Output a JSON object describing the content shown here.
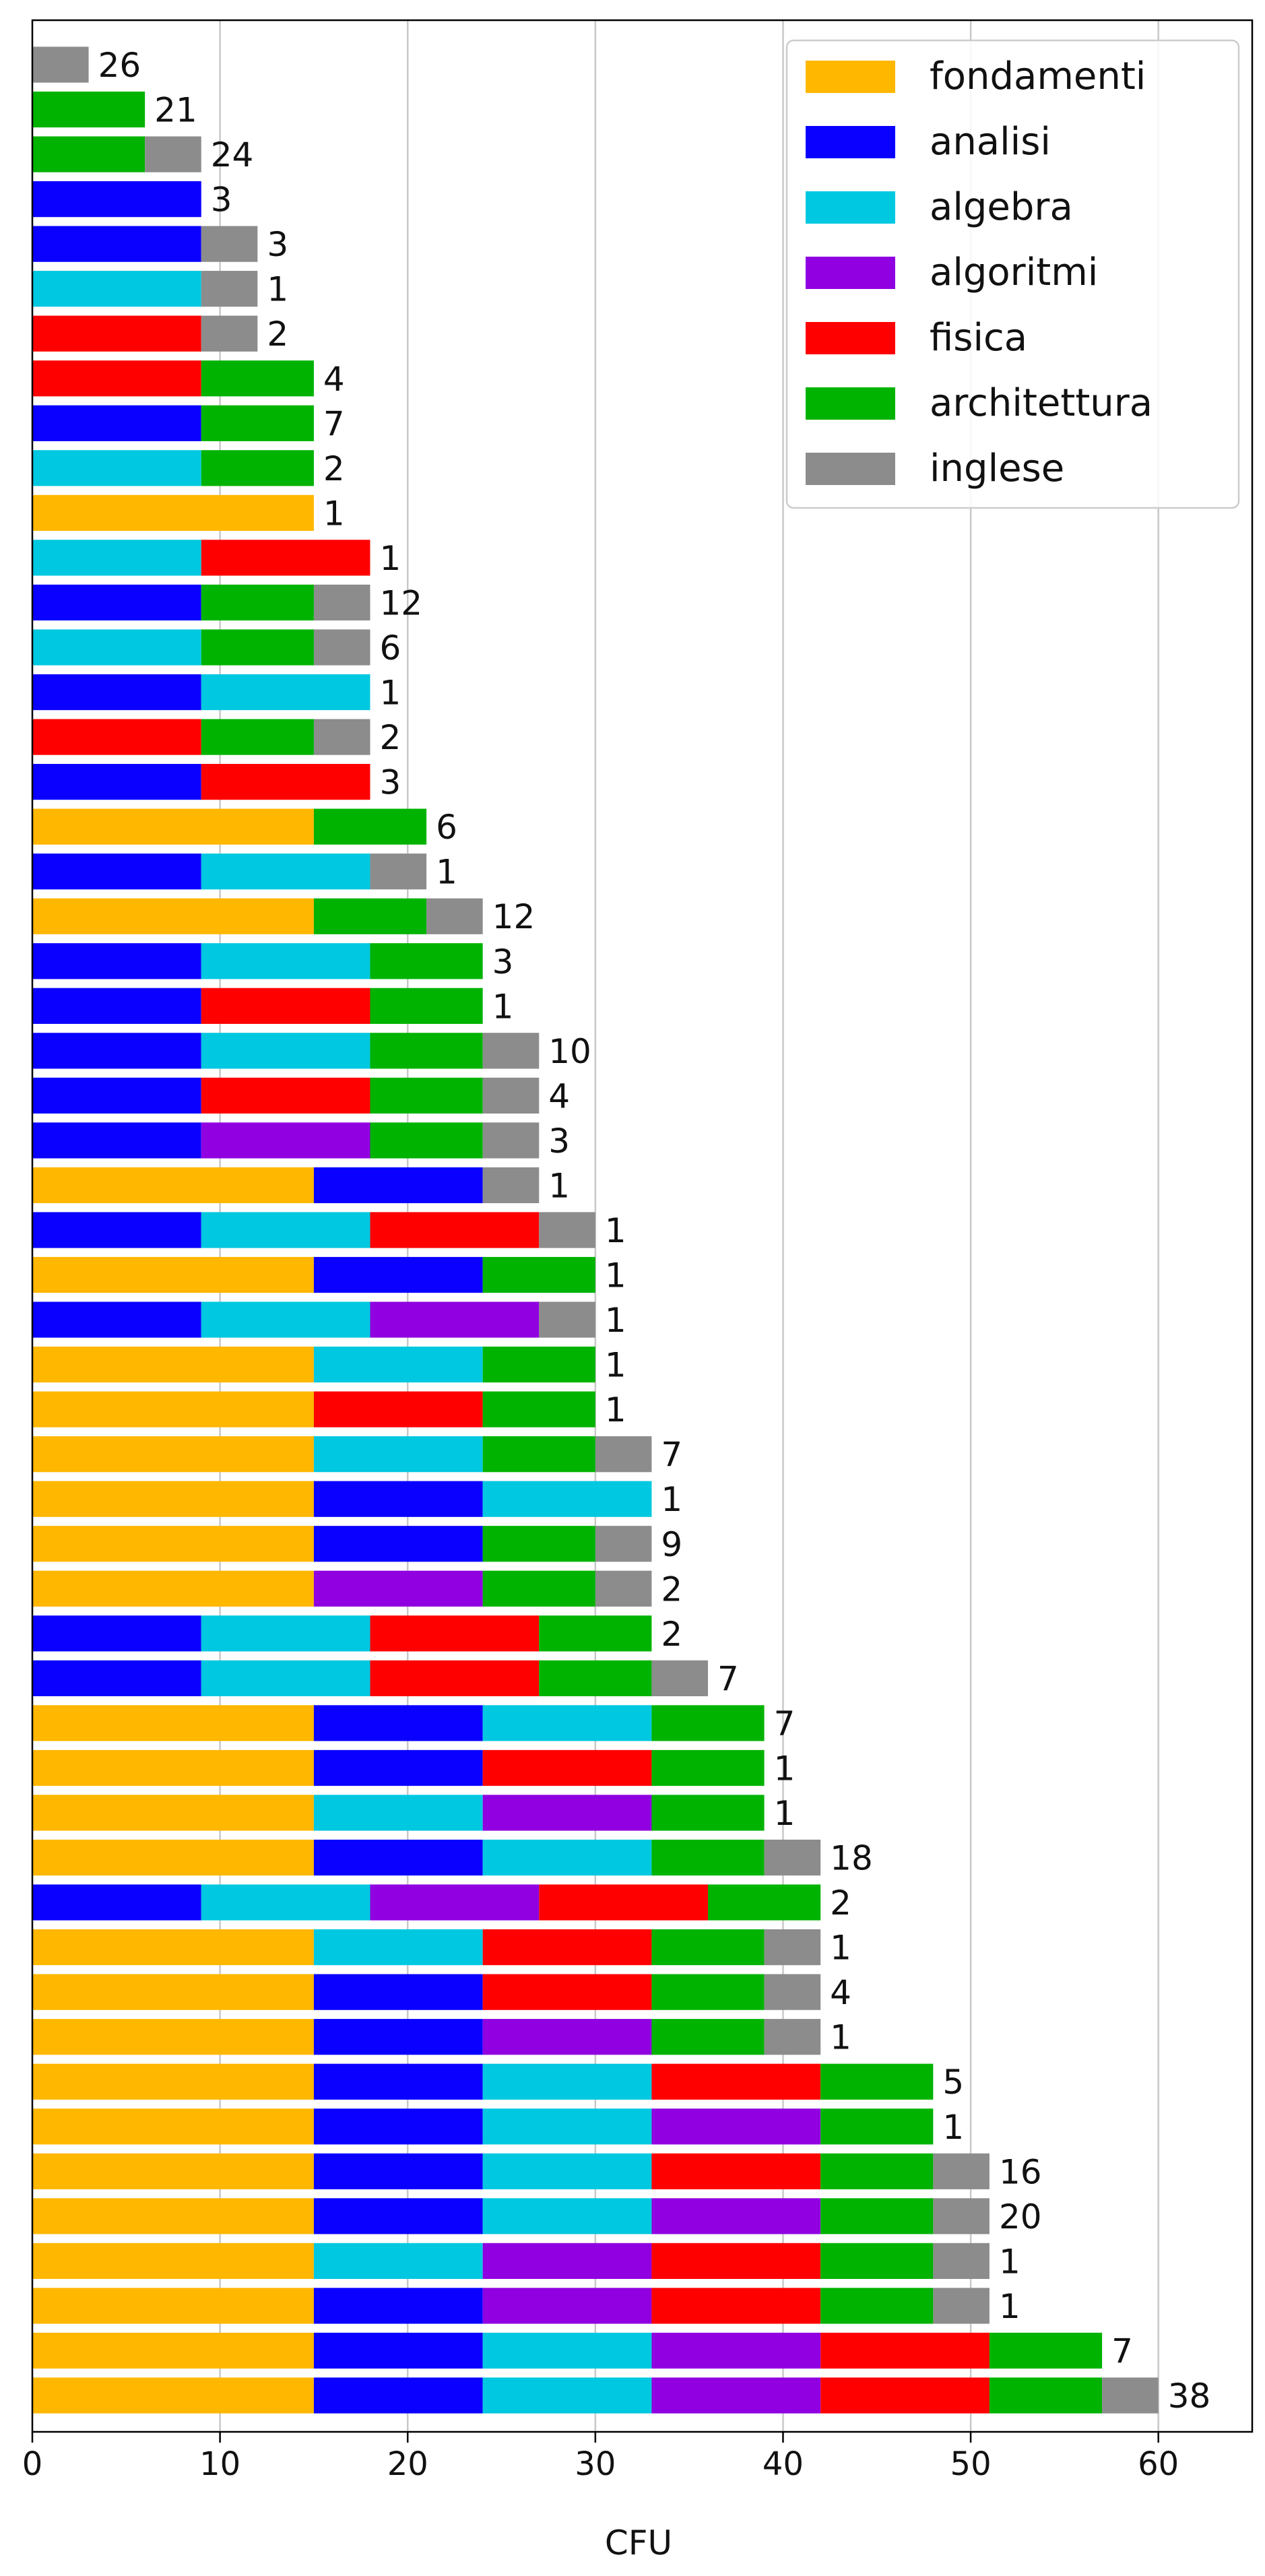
{
  "chart_data": {
    "type": "bar",
    "orientation": "horizontal",
    "stacked": true,
    "xlabel": "CFU",
    "ylabel": "",
    "xlim": [
      0,
      65
    ],
    "x_ticks": [
      "0",
      "10",
      "20",
      "30",
      "40",
      "50",
      "60"
    ],
    "grid": "vertical",
    "legend_position": "top-right",
    "subjects": [
      {
        "name": "fondamenti",
        "cfu": 15,
        "color": "#ffb700"
      },
      {
        "name": "analisi",
        "cfu": 9,
        "color": "#0a00ff"
      },
      {
        "name": "algebra",
        "cfu": 9,
        "color": "#00c8e0"
      },
      {
        "name": "algoritmi",
        "cfu": 9,
        "color": "#9000e0"
      },
      {
        "name": "fisica",
        "cfu": 9,
        "color": "#ff0000"
      },
      {
        "name": "architettura",
        "cfu": 6,
        "color": "#00b300"
      },
      {
        "name": "inglese",
        "cfu": 3,
        "color": "#8c8c8c"
      }
    ],
    "bars": [
      {
        "count": "26",
        "parts": [
          "inglese"
        ]
      },
      {
        "count": "21",
        "parts": [
          "architettura"
        ]
      },
      {
        "count": "24",
        "parts": [
          "architettura",
          "inglese"
        ]
      },
      {
        "count": "3",
        "parts": [
          "analisi"
        ]
      },
      {
        "count": "3",
        "parts": [
          "analisi",
          "inglese"
        ]
      },
      {
        "count": "1",
        "parts": [
          "algebra",
          "inglese"
        ]
      },
      {
        "count": "2",
        "parts": [
          "fisica",
          "inglese"
        ]
      },
      {
        "count": "4",
        "parts": [
          "fisica",
          "architettura"
        ]
      },
      {
        "count": "7",
        "parts": [
          "analisi",
          "architettura"
        ]
      },
      {
        "count": "2",
        "parts": [
          "algebra",
          "architettura"
        ]
      },
      {
        "count": "1",
        "parts": [
          "fondamenti"
        ]
      },
      {
        "count": "1",
        "parts": [
          "algebra",
          "fisica"
        ]
      },
      {
        "count": "12",
        "parts": [
          "analisi",
          "architettura",
          "inglese"
        ]
      },
      {
        "count": "6",
        "parts": [
          "algebra",
          "architettura",
          "inglese"
        ]
      },
      {
        "count": "1",
        "parts": [
          "analisi",
          "algebra"
        ]
      },
      {
        "count": "2",
        "parts": [
          "fisica",
          "architettura",
          "inglese"
        ]
      },
      {
        "count": "3",
        "parts": [
          "analisi",
          "fisica"
        ]
      },
      {
        "count": "6",
        "parts": [
          "fondamenti",
          "architettura"
        ]
      },
      {
        "count": "1",
        "parts": [
          "analisi",
          "algebra",
          "inglese"
        ]
      },
      {
        "count": "12",
        "parts": [
          "fondamenti",
          "architettura",
          "inglese"
        ]
      },
      {
        "count": "3",
        "parts": [
          "analisi",
          "algebra",
          "architettura"
        ]
      },
      {
        "count": "1",
        "parts": [
          "analisi",
          "fisica",
          "architettura"
        ]
      },
      {
        "count": "10",
        "parts": [
          "analisi",
          "algebra",
          "architettura",
          "inglese"
        ]
      },
      {
        "count": "4",
        "parts": [
          "analisi",
          "fisica",
          "architettura",
          "inglese"
        ]
      },
      {
        "count": "3",
        "parts": [
          "analisi",
          "algoritmi",
          "architettura",
          "inglese"
        ]
      },
      {
        "count": "1",
        "parts": [
          "fondamenti",
          "analisi",
          "inglese"
        ]
      },
      {
        "count": "1",
        "parts": [
          "analisi",
          "algebra",
          "fisica",
          "inglese"
        ]
      },
      {
        "count": "1",
        "parts": [
          "fondamenti",
          "analisi",
          "architettura"
        ]
      },
      {
        "count": "1",
        "parts": [
          "analisi",
          "algebra",
          "algoritmi",
          "inglese"
        ]
      },
      {
        "count": "1",
        "parts": [
          "fondamenti",
          "algebra",
          "architettura"
        ]
      },
      {
        "count": "1",
        "parts": [
          "fondamenti",
          "fisica",
          "architettura"
        ]
      },
      {
        "count": "7",
        "parts": [
          "fondamenti",
          "algebra",
          "architettura",
          "inglese"
        ]
      },
      {
        "count": "1",
        "parts": [
          "fondamenti",
          "analisi",
          "algebra"
        ]
      },
      {
        "count": "9",
        "parts": [
          "fondamenti",
          "analisi",
          "architettura",
          "inglese"
        ]
      },
      {
        "count": "2",
        "parts": [
          "fondamenti",
          "algoritmi",
          "architettura",
          "inglese"
        ]
      },
      {
        "count": "2",
        "parts": [
          "analisi",
          "algebra",
          "fisica",
          "architettura"
        ]
      },
      {
        "count": "7",
        "parts": [
          "analisi",
          "algebra",
          "fisica",
          "architettura",
          "inglese"
        ]
      },
      {
        "count": "7",
        "parts": [
          "fondamenti",
          "analisi",
          "algebra",
          "architettura"
        ]
      },
      {
        "count": "1",
        "parts": [
          "fondamenti",
          "analisi",
          "fisica",
          "architettura"
        ]
      },
      {
        "count": "1",
        "parts": [
          "fondamenti",
          "algebra",
          "algoritmi",
          "architettura"
        ]
      },
      {
        "count": "18",
        "parts": [
          "fondamenti",
          "analisi",
          "algebra",
          "architettura",
          "inglese"
        ]
      },
      {
        "count": "2",
        "parts": [
          "analisi",
          "algebra",
          "algoritmi",
          "fisica",
          "architettura"
        ]
      },
      {
        "count": "1",
        "parts": [
          "fondamenti",
          "algebra",
          "fisica",
          "architettura",
          "inglese"
        ]
      },
      {
        "count": "4",
        "parts": [
          "fondamenti",
          "analisi",
          "fisica",
          "architettura",
          "inglese"
        ]
      },
      {
        "count": "1",
        "parts": [
          "fondamenti",
          "analisi",
          "algoritmi",
          "architettura",
          "inglese"
        ]
      },
      {
        "count": "5",
        "parts": [
          "fondamenti",
          "analisi",
          "algebra",
          "fisica",
          "architettura"
        ]
      },
      {
        "count": "1",
        "parts": [
          "fondamenti",
          "analisi",
          "algebra",
          "algoritmi",
          "architettura"
        ]
      },
      {
        "count": "16",
        "parts": [
          "fondamenti",
          "analisi",
          "algebra",
          "fisica",
          "architettura",
          "inglese"
        ]
      },
      {
        "count": "20",
        "parts": [
          "fondamenti",
          "analisi",
          "algebra",
          "algoritmi",
          "architettura",
          "inglese"
        ]
      },
      {
        "count": "1",
        "parts": [
          "fondamenti",
          "algebra",
          "algoritmi",
          "fisica",
          "architettura",
          "inglese"
        ]
      },
      {
        "count": "1",
        "parts": [
          "fondamenti",
          "analisi",
          "algoritmi",
          "fisica",
          "architettura",
          "inglese"
        ]
      },
      {
        "count": "7",
        "parts": [
          "fondamenti",
          "analisi",
          "algebra",
          "algoritmi",
          "fisica",
          "architettura"
        ]
      },
      {
        "count": "38",
        "parts": [
          "fondamenti",
          "analisi",
          "algebra",
          "algoritmi",
          "fisica",
          "architettura",
          "inglese"
        ]
      }
    ]
  }
}
